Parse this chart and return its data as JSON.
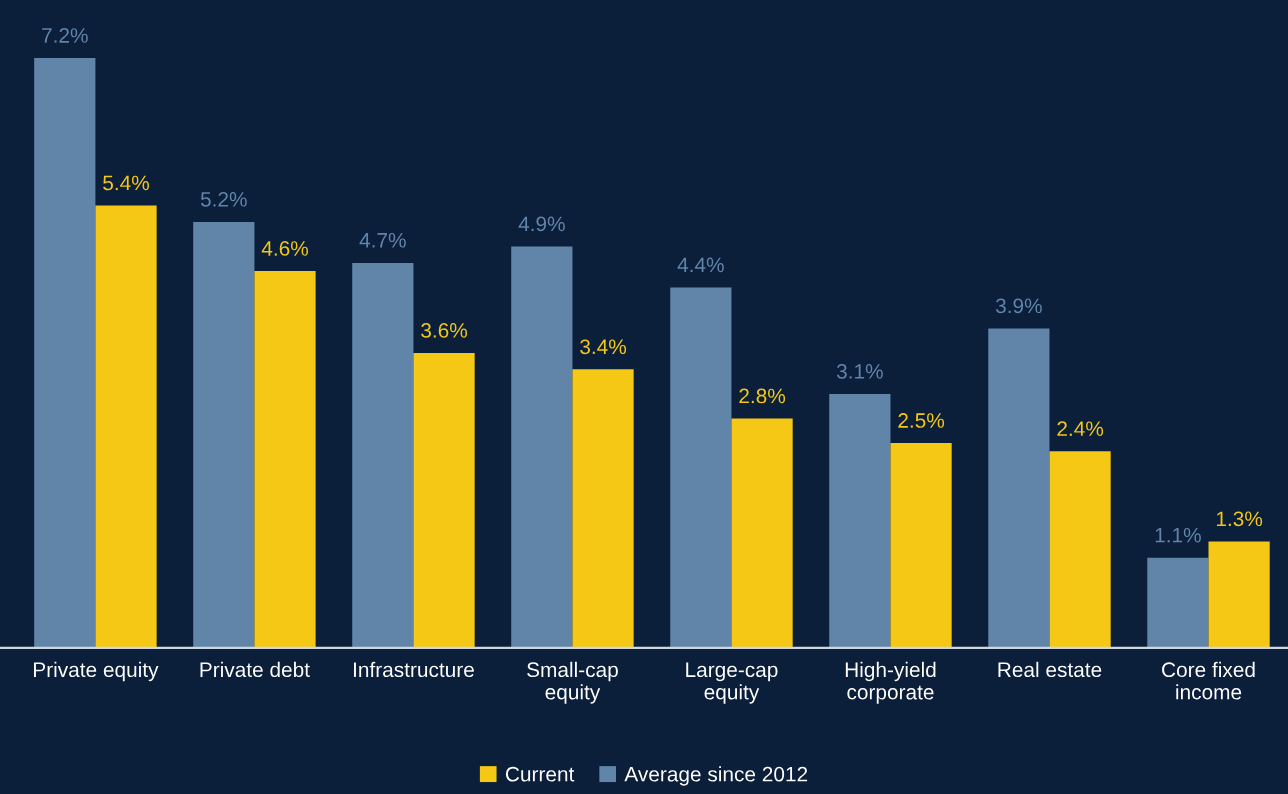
{
  "chart_data": {
    "type": "bar",
    "categories": [
      "Private equity",
      "Private debt",
      "Infrastructure",
      "Small-cap\nequity",
      "Large-cap\nequity",
      "High-yield\ncorporate",
      "Real estate",
      "Core fixed\nincome"
    ],
    "series": [
      {
        "name": "Average since 2012",
        "color": "#6185a9",
        "values": [
          7.2,
          5.2,
          4.7,
          4.9,
          4.4,
          3.1,
          3.9,
          1.1
        ],
        "value_labels": [
          "7.2%",
          "5.2%",
          "4.7%",
          "4.9%",
          "4.4%",
          "3.1%",
          "3.9%",
          "1.1%"
        ]
      },
      {
        "name": "Current",
        "color": "#f5c815",
        "values": [
          5.4,
          4.6,
          3.6,
          3.4,
          2.8,
          2.5,
          2.4,
          1.3
        ],
        "value_labels": [
          "5.4%",
          "4.6%",
          "3.6%",
          "3.4%",
          "2.8%",
          "2.5%",
          "2.4%",
          "1.3%"
        ]
      }
    ],
    "legend": "bottom"
  }
}
